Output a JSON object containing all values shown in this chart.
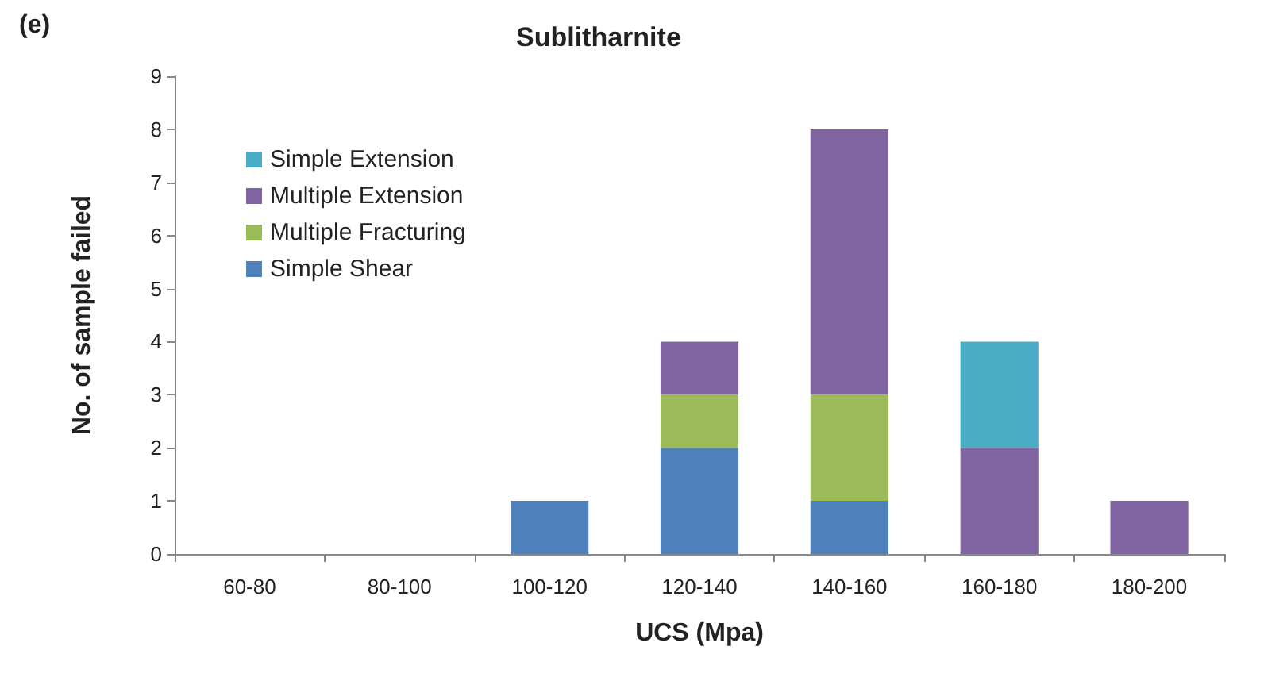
{
  "chart_data": {
    "type": "bar",
    "title": "Sublitharnite",
    "xlabel": "UCS (Mpa)",
    "ylabel": "No. of sample failed",
    "annotations": [
      "(e)"
    ],
    "categories": [
      "60-80",
      "80-100",
      "100-120",
      "120-140",
      "140-160",
      "160-180",
      "180-200"
    ],
    "series": [
      {
        "name": "Simple Shear",
        "color": "#4f81bd",
        "values": [
          0,
          0,
          1,
          2,
          1,
          0,
          0
        ]
      },
      {
        "name": "Multiple Fracturing",
        "color": "#9bbb59",
        "values": [
          0,
          0,
          0,
          1,
          2,
          0,
          0
        ]
      },
      {
        "name": "Multiple Extension",
        "color": "#8064a2",
        "values": [
          0,
          0,
          0,
          1,
          5,
          2,
          1
        ]
      },
      {
        "name": "Simple Extension",
        "color": "#4bacc6",
        "values": [
          0,
          0,
          0,
          0,
          0,
          2,
          0
        ]
      }
    ],
    "stacked": true,
    "ylim": [
      0,
      9
    ],
    "yticks": [
      0,
      1,
      2,
      3,
      4,
      5,
      6,
      7,
      8,
      9
    ],
    "grid": false,
    "legend": "top left"
  }
}
